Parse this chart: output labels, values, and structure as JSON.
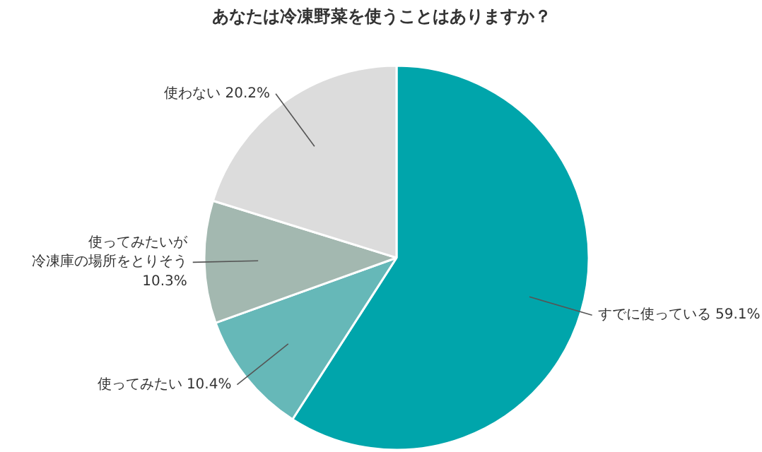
{
  "chart_data": {
    "type": "pie",
    "title": "あなたは冷凍野菜を使うことはありますか？",
    "categories": [
      "すでに使っている",
      "使ってみたい",
      "使ってみたいが冷凍庫の場所をとりそう",
      "使わない"
    ],
    "values": [
      59.1,
      10.4,
      10.3,
      20.2
    ],
    "colors": [
      "#00a5ab",
      "#66b8b8",
      "#a3b8b0",
      "#dcdcdc"
    ],
    "value_labels": [
      "59.1%",
      "10.4%",
      "10.3%",
      "20.2%"
    ]
  }
}
